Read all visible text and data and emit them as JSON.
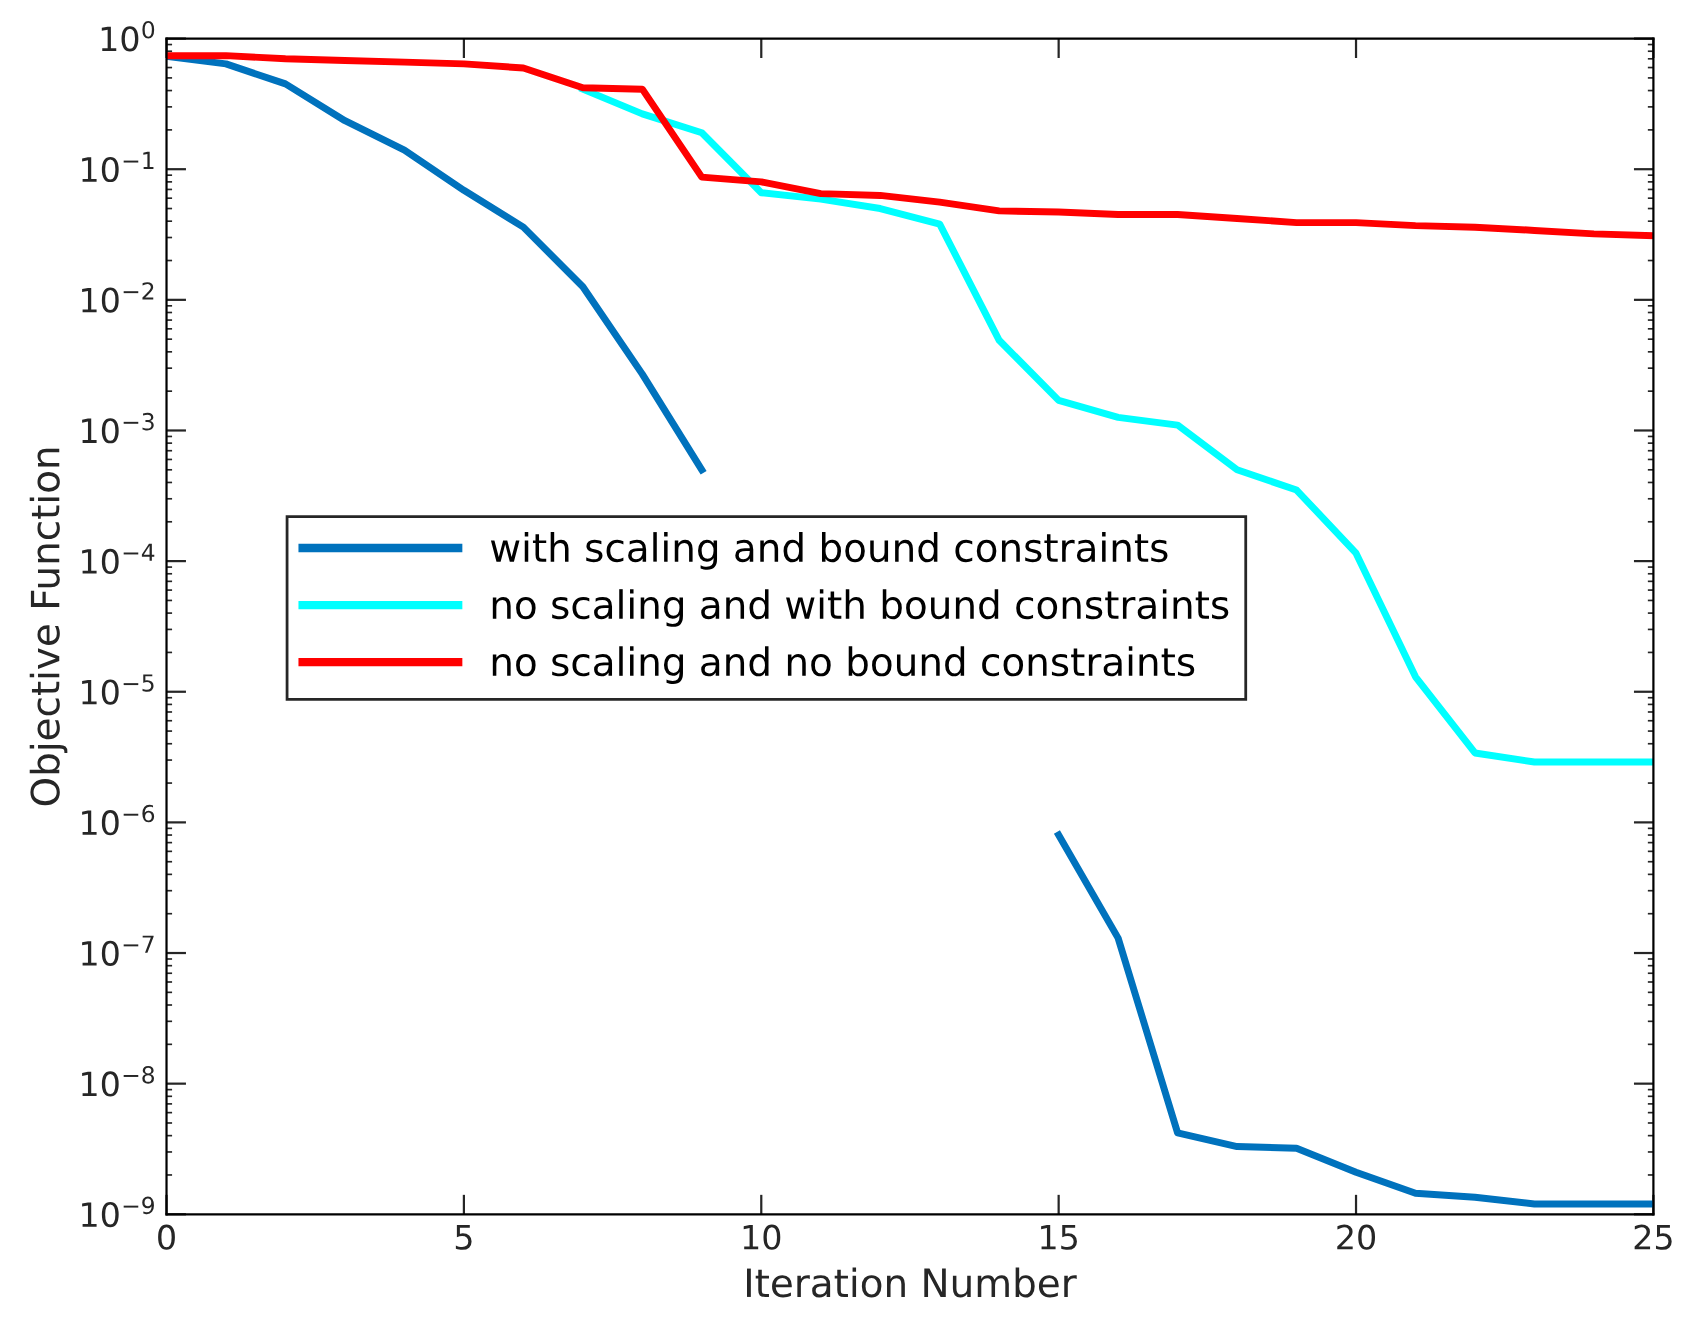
{
  "chart_data": {
    "type": "line",
    "xlabel": "Iteration Number",
    "ylabel": "Objective Function",
    "log": "y",
    "grid": false,
    "legend": "left",
    "marker": "none",
    "line_style": "solid",
    "x": [
      0,
      1,
      2,
      3,
      4,
      5,
      6,
      7,
      8,
      9,
      10,
      11,
      12,
      13,
      14,
      15,
      16,
      17,
      18,
      19,
      20,
      21,
      22,
      23,
      24,
      25
    ],
    "xlim": [
      0,
      25
    ],
    "xticks": [
      0,
      5,
      10,
      15,
      20,
      25
    ],
    "ylim": [
      1e-09,
      1
    ],
    "yticks": [
      {
        "value": 1,
        "label": "10$^{0}$"
      },
      {
        "value": 0.1,
        "label": "10$^{−1}$"
      },
      {
        "value": 0.01,
        "label": "10$^{−2}$"
      },
      {
        "value": 0.001,
        "label": "10$^{−3}$"
      },
      {
        "value": 0.0001,
        "label": "10$^{−4}$"
      },
      {
        "value": 1e-05,
        "label": "10$^{−5}$"
      },
      {
        "value": 1e-06,
        "label": "10$^{−6}$"
      },
      {
        "value": 1e-07,
        "label": "10$^{−7}$"
      },
      {
        "value": 1e-08,
        "label": "10$^{−8}$"
      },
      {
        "value": 1e-09,
        "label": "10$^{−9}$"
      }
    ],
    "series": [
      {
        "name": "with scaling and bound constraints",
        "color": "#0072bd",
        "values": [
          0.73,
          0.64,
          0.45,
          0.235,
          0.14,
          0.069,
          0.036,
          0.0126,
          0.0027,
          0.0005,
          null,
          null,
          null,
          null,
          null,
          8e-07,
          1.3e-07,
          4.2e-09,
          3.3e-09,
          3.2e-09,
          2.1e-09,
          1.45e-09,
          1.35e-09,
          1.2e-09,
          1.2e-09,
          1.2e-09
        ]
      },
      {
        "name": "no scaling and with bound constraints",
        "color": "#00ffff",
        "values": [
          null,
          null,
          null,
          null,
          null,
          null,
          null,
          0.41,
          0.265,
          0.19,
          0.066,
          0.059,
          0.05,
          0.038,
          0.0049,
          0.0017,
          0.00126,
          0.0011,
          0.0005,
          0.00035,
          0.000115,
          1.3e-05,
          3.4e-06,
          2.9e-06,
          2.9e-06,
          2.9e-06
        ]
      },
      {
        "name": "no scaling and no bound constraints",
        "color": "#ff0000",
        "values": [
          0.74,
          0.74,
          0.7,
          0.68,
          0.66,
          0.64,
          0.595,
          0.42,
          0.41,
          0.087,
          0.08,
          0.065,
          0.063,
          0.056,
          0.048,
          0.047,
          0.045,
          0.045,
          0.042,
          0.039,
          0.039,
          0.037,
          0.036,
          0.034,
          0.032,
          0.031
        ]
      }
    ]
  }
}
